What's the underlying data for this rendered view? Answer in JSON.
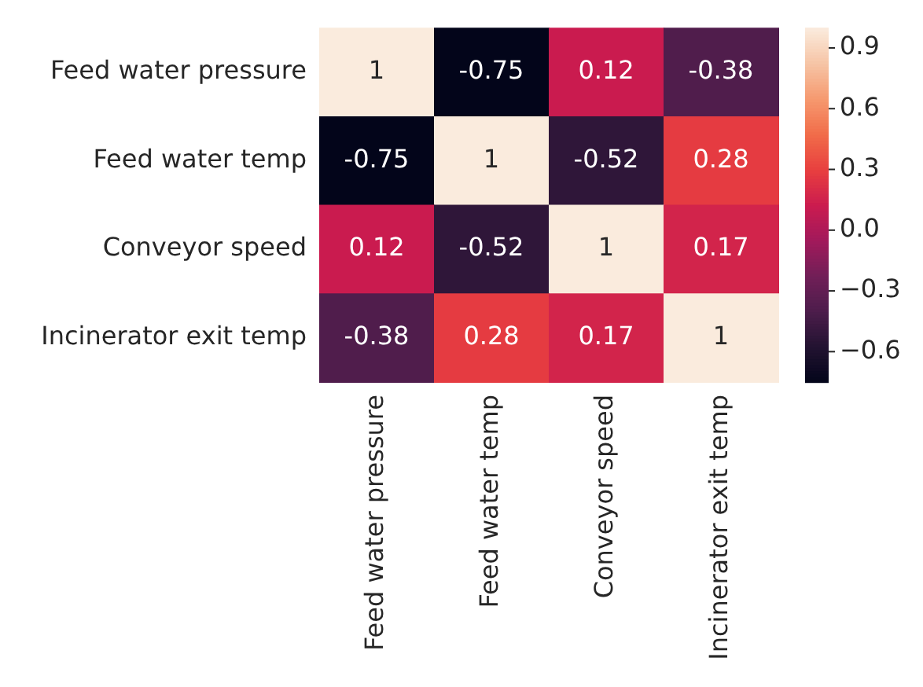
{
  "chart_data": {
    "type": "heatmap",
    "categories": [
      "Feed water pressure",
      "Feed water temp",
      "Conveyor speed",
      "Incinerator exit temp"
    ],
    "y_categories": [
      "Feed water pressure",
      "Feed water temp",
      "Conveyor speed",
      "Incinerator exit temp"
    ],
    "cells": [
      [
        1,
        -0.75,
        0.12,
        -0.38
      ],
      [
        -0.75,
        1,
        -0.52,
        0.28
      ],
      [
        0.12,
        -0.52,
        1,
        0.17
      ],
      [
        -0.38,
        0.28,
        0.17,
        1
      ]
    ],
    "data_labels": true,
    "clim": [
      -0.75,
      1
    ],
    "cticks": [
      {
        "value": -0.6,
        "label": "−0.6"
      },
      {
        "value": -0.3,
        "label": "−0.3"
      },
      {
        "value": 0,
        "label": "0.0"
      },
      0.3,
      0.6,
      0.9
    ]
  }
}
